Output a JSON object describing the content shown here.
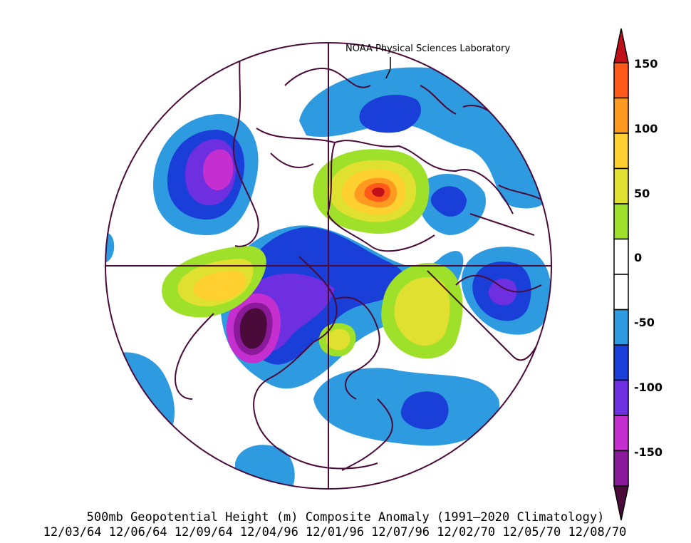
{
  "credit": "NOAA Physical Sciences Laboratory",
  "title": "500mb Geopotential Height (m) Composite Anomaly (1991–2020 Climatology)",
  "dates": "12/03/64 12/06/64 12/09/64 12/04/96 12/01/96 12/07/96 12/02/70 12/05/70 12/08/70",
  "colorbar": {
    "labels": [
      "150",
      "100",
      "50",
      "0",
      "-50",
      "-100",
      "-150"
    ],
    "colors": [
      "#4a0a3a",
      "#8b1a9a",
      "#c62fcf",
      "#6e2fe0",
      "#1a3fd8",
      "#2e9be0",
      "#ffffff",
      "#ffffff",
      "#9ee02a",
      "#e0e030",
      "#ffd030",
      "#ff9a20",
      "#ff5a1a",
      "#c0101a"
    ],
    "min": -175,
    "max": 175,
    "interval": 25
  },
  "anomaly_colors": {
    "neg150": "#4a0a3a",
    "neg125": "#8b1a9a",
    "neg100": "#c62fcf",
    "neg75": "#6e2fe0",
    "neg50": "#1a3fd8",
    "neg25": "#2e9be0",
    "pos25": "#9ee02a",
    "pos50": "#e0e030",
    "pos75": "#ffd030",
    "pos100": "#ff9a20",
    "pos125": "#ff5a1a",
    "pos150": "#c0101a"
  },
  "map": {
    "projection": "north polar stereographic",
    "outline_color": "#4a0a3a"
  }
}
